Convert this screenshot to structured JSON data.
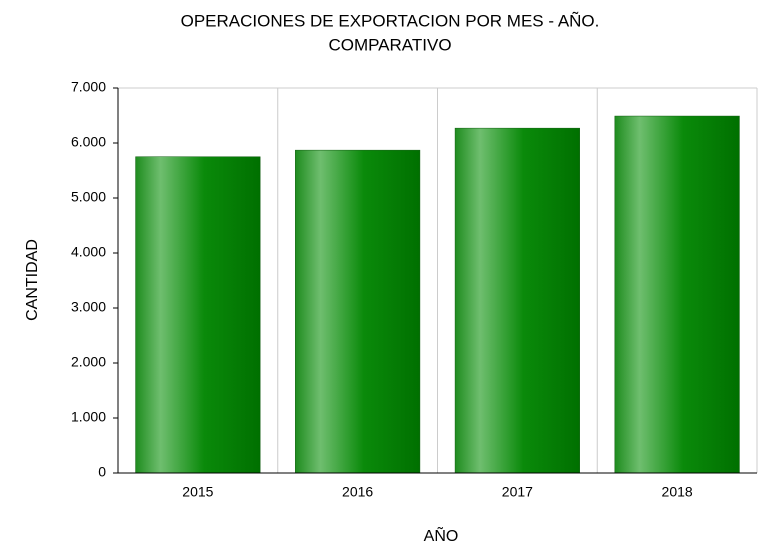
{
  "chart_data": {
    "type": "bar",
    "title": [
      "OPERACIONES DE EXPORTACION POR MES - AÑO.",
      "COMPARATIVO"
    ],
    "xlabel": "AÑO",
    "ylabel": "CANTIDAD",
    "categories": [
      "2015",
      "2016",
      "2017",
      "2018"
    ],
    "values": [
      5750,
      5870,
      6270,
      6490
    ],
    "color": "#008000",
    "ylim": [
      0,
      7000
    ],
    "yticks": [
      0,
      {
        "value": 1000,
        "label": "1.000"
      },
      {
        "value": 2000,
        "label": "2.000"
      },
      {
        "value": 3000,
        "label": "3.000"
      },
      {
        "value": 4000,
        "label": "4.000"
      },
      {
        "value": 5000,
        "label": "5.000"
      },
      {
        "value": 6000,
        "label": "6.000"
      },
      {
        "value": 7000,
        "label": "7.000"
      }
    ],
    "grid": "vertical"
  }
}
